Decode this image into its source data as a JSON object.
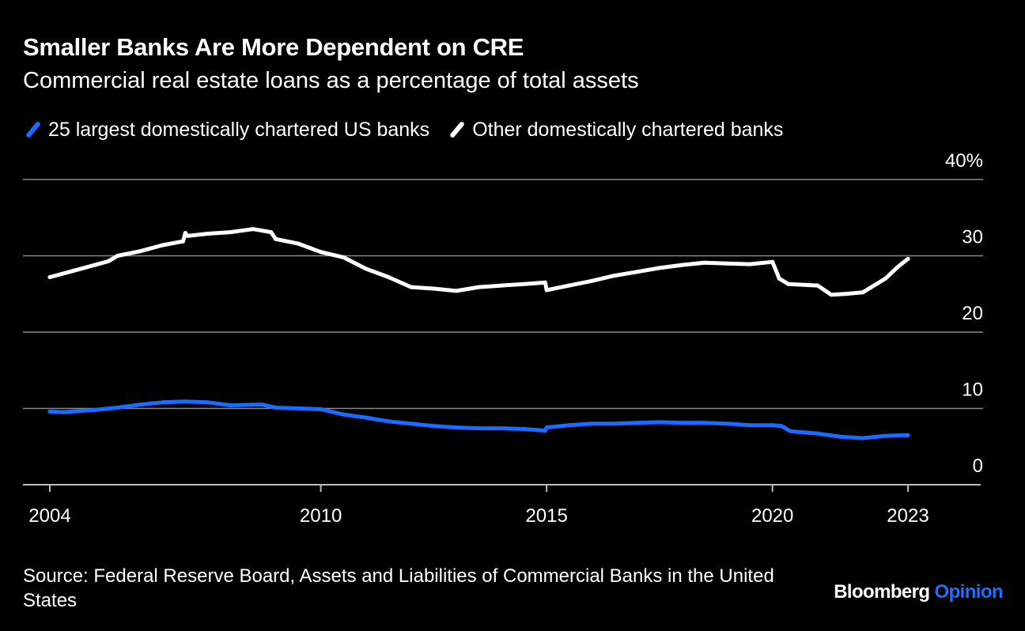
{
  "header": {
    "title": "Smaller Banks Are More Dependent on CRE",
    "subtitle": "Commercial real estate loans as a percentage of total assets"
  },
  "footer": {
    "source": "Source: Federal Reserve Board, Assets and Liabilities of Commercial Banks in the United States",
    "brand_name": "Bloomberg",
    "brand_section": "Opinion"
  },
  "colors": {
    "background": "#000000",
    "text": "#ffffff",
    "grid": "#8a8a8a",
    "brand_accent": "#1f6fff"
  },
  "chart_data": {
    "type": "line",
    "title": "Smaller Banks Are More Dependent on CRE",
    "subtitle": "Commercial real estate loans as a percentage of total assets",
    "xlabel": "",
    "ylabel": "",
    "xlim": [
      2004.0,
      2023.6
    ],
    "ylim": [
      0,
      40
    ],
    "x_ticks": [
      2004,
      2010,
      2015,
      2020,
      2023
    ],
    "x_tick_labels": [
      "2004",
      "2010",
      "2015",
      "2020",
      "2023"
    ],
    "y_ticks": [
      0,
      10,
      20,
      30,
      40
    ],
    "y_tick_labels": [
      "0",
      "10",
      "20",
      "30",
      "40%"
    ],
    "grid": true,
    "y_axis_side": "right",
    "legend_position": "top-left",
    "series": [
      {
        "name": "25 largest domestically chartered US banks",
        "color": "#1a6bff",
        "x": [
          2004.0,
          2004.3,
          2005.0,
          2005.5,
          2006.0,
          2006.5,
          2007.0,
          2007.5,
          2008.0,
          2008.5,
          2008.7,
          2009.0,
          2009.5,
          2010.0,
          2010.5,
          2011.0,
          2011.5,
          2012.0,
          2012.5,
          2013.0,
          2013.5,
          2014.0,
          2014.5,
          2014.97,
          2015.0,
          2015.5,
          2016.0,
          2016.5,
          2017.0,
          2017.5,
          2018.0,
          2018.5,
          2019.0,
          2019.5,
          2020.0,
          2020.2,
          2020.4,
          2021.0,
          2021.5,
          2022.0,
          2022.5,
          2023.0
        ],
        "values": [
          9.6,
          9.5,
          9.8,
          10.1,
          10.5,
          10.8,
          10.9,
          10.8,
          10.4,
          10.5,
          10.5,
          10.1,
          10.0,
          9.9,
          9.2,
          8.8,
          8.3,
          8.0,
          7.7,
          7.5,
          7.4,
          7.4,
          7.3,
          7.1,
          7.5,
          7.8,
          8.0,
          8.0,
          8.1,
          8.2,
          8.1,
          8.1,
          8.0,
          7.8,
          7.8,
          7.7,
          7.0,
          6.7,
          6.3,
          6.1,
          6.4,
          6.5
        ]
      },
      {
        "name": "Other domestically chartered banks",
        "color": "#ffffff",
        "x": [
          2004.0,
          2004.5,
          2005.0,
          2005.3,
          2005.5,
          2006.0,
          2006.5,
          2006.95,
          2007.0,
          2007.05,
          2007.5,
          2008.0,
          2008.5,
          2008.9,
          2009.0,
          2009.5,
          2010.0,
          2010.5,
          2011.0,
          2011.5,
          2012.0,
          2012.5,
          2013.0,
          2013.5,
          2014.0,
          2014.5,
          2014.97,
          2015.0,
          2015.5,
          2016.0,
          2016.5,
          2017.0,
          2017.5,
          2018.0,
          2018.5,
          2019.0,
          2019.5,
          2020.0,
          2020.15,
          2020.35,
          2021.0,
          2021.3,
          2021.6,
          2022.0,
          2022.5,
          2022.75,
          2022.85,
          2023.0
        ],
        "values": [
          27.2,
          28.0,
          28.8,
          29.3,
          30.0,
          30.6,
          31.4,
          31.9,
          33.0,
          32.6,
          32.9,
          33.1,
          33.5,
          33.1,
          32.2,
          31.6,
          30.5,
          29.8,
          28.3,
          27.2,
          25.9,
          25.7,
          25.4,
          25.9,
          26.1,
          26.3,
          26.5,
          25.5,
          26.1,
          26.7,
          27.4,
          27.9,
          28.4,
          28.8,
          29.1,
          29.0,
          28.9,
          29.2,
          27.0,
          26.3,
          26.1,
          24.9,
          25.0,
          25.2,
          27.0,
          28.4,
          28.9,
          29.6
        ]
      }
    ]
  }
}
